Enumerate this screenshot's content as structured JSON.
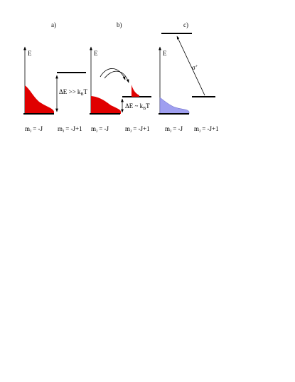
{
  "panels": [
    {
      "label": "a)",
      "axis": "E",
      "gap": {
        "main": "ΔE >> k",
        "sub": "B",
        "rest": "T"
      },
      "levels": [
        {
          "m": "m",
          "sub": "J",
          "rest": " = -J"
        },
        {
          "m": "m",
          "sub": "J",
          "rest": " = -J+1"
        }
      ]
    },
    {
      "label": "b)",
      "axis": "E",
      "gap": {
        "main": "ΔE ~ k",
        "sub": "B",
        "rest": "T"
      },
      "levels": [
        {
          "m": "m",
          "sub": "J",
          "rest": " = -J"
        },
        {
          "m": "m",
          "sub": "J",
          "rest": " = -J+1"
        }
      ]
    },
    {
      "label": "c)",
      "axis": "E",
      "transition": {
        "main": "σ",
        "sup": "+"
      },
      "levels": [
        {
          "m": "m",
          "sub": "J",
          "rest": " = -J"
        },
        {
          "m": "m",
          "sub": "J",
          "rest": " = -J+1"
        }
      ]
    }
  ]
}
